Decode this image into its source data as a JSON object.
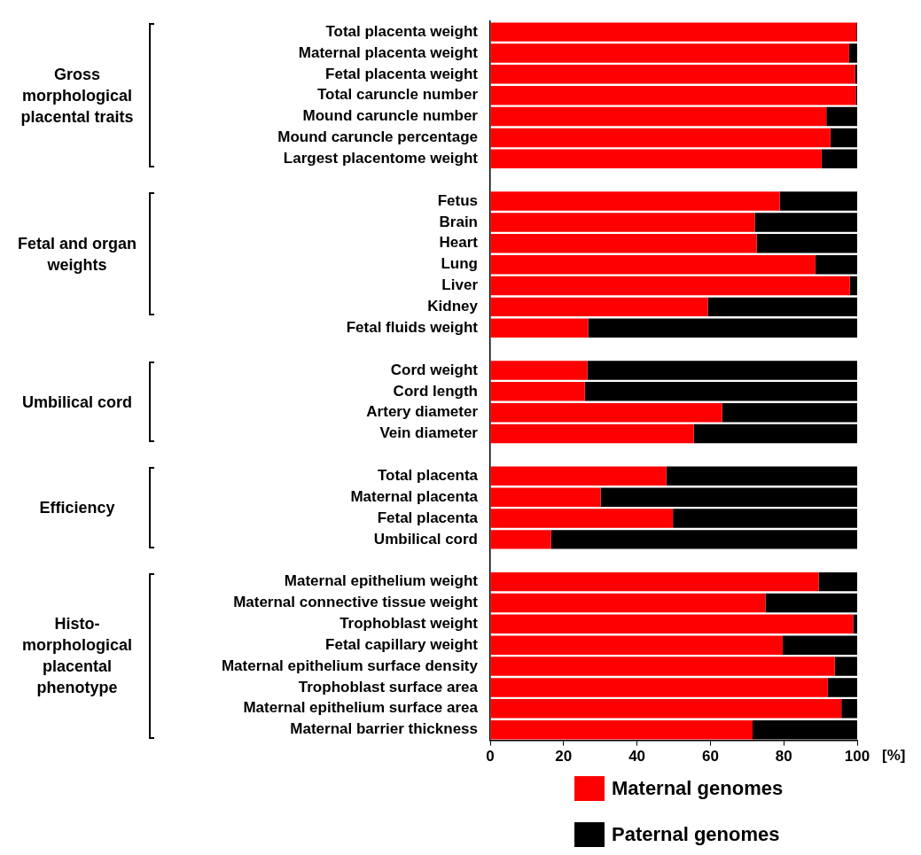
{
  "chart_data": {
    "type": "bar",
    "orientation": "horizontal",
    "stacked": true,
    "xlabel": "[%]",
    "categories": [
      "Total placenta weight",
      "Maternal placenta weight",
      "Fetal placenta weight",
      "Total caruncle number",
      "Mound caruncle number",
      "Mound caruncle percentage",
      "Largest placentome weight",
      null,
      "Fetus",
      "Brain",
      "Heart",
      "Lung",
      "Liver",
      "Kidney",
      "Fetal fluids weight",
      null,
      "Cord weight",
      "Cord length",
      "Artery diameter",
      "Vein diameter",
      null,
      "Total placenta",
      "Maternal placenta",
      "Fetal placenta",
      "Umbilical cord",
      null,
      "Maternal epithelium weight",
      "Maternal connective tissue weight",
      "Trophoblast weight",
      "Fetal capillary weight",
      "Maternal epithelium surface density",
      "Trophoblast surface area",
      "Maternal epithelium surface area",
      "Maternal barrier thickness"
    ],
    "series": [
      {
        "name": "Maternal genomes",
        "color": "#ff0000",
        "values": [
          99.8,
          97.8,
          99.4,
          99.6,
          91.6,
          92.7,
          90.3,
          null,
          78.9,
          72.1,
          72.6,
          88.6,
          98.0,
          59.3,
          26.7,
          null,
          26.5,
          25.8,
          63.2,
          55.5,
          null,
          48.0,
          30.1,
          49.8,
          16.6,
          null,
          89.5,
          75.0,
          98.9,
          79.7,
          93.9,
          92.0,
          95.7,
          71.5
        ]
      },
      {
        "name": "Paternal genomes",
        "color": "#000000",
        "values": [
          0.2,
          2.2,
          0.6,
          0.4,
          8.4,
          7.3,
          9.7,
          null,
          21.1,
          27.9,
          27.4,
          11.4,
          2.0,
          40.7,
          73.3,
          null,
          73.5,
          74.2,
          36.8,
          44.5,
          null,
          52.0,
          69.9,
          50.2,
          83.4,
          null,
          10.5,
          25.0,
          1.1,
          20.3,
          6.1,
          8.0,
          4.3,
          28.5
        ]
      }
    ],
    "xlim": [
      0,
      100
    ],
    "xticks": [
      0,
      20,
      40,
      60,
      80,
      100
    ],
    "grid": false,
    "legend": "bottom",
    "annotations": [
      "Gross morphological placental traits",
      "Fetal and organ weights",
      "Umbilical cord",
      "Efficiency",
      "Histo-morphological placental phenotype"
    ]
  }
}
